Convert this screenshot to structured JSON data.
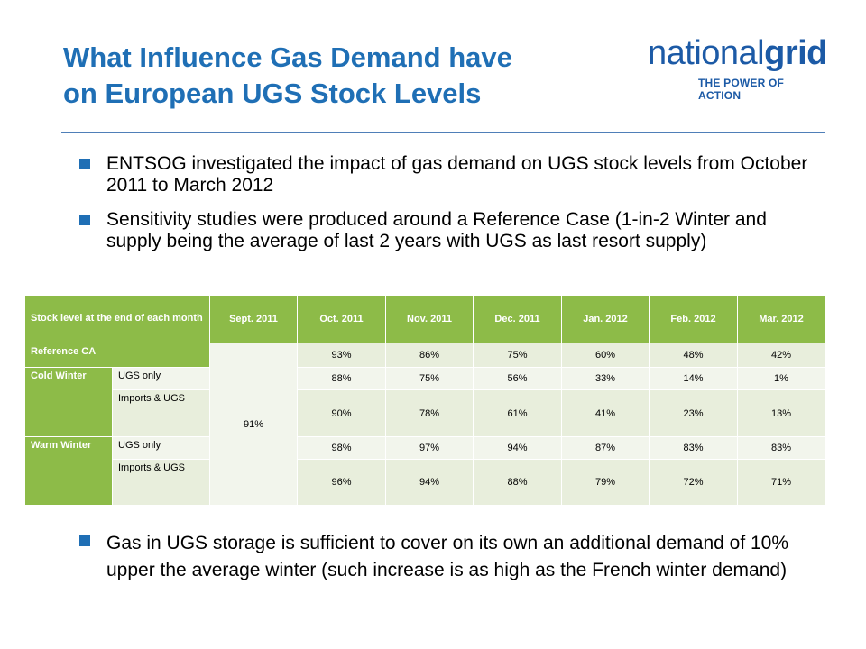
{
  "header": {
    "title_line1": "What Influence Gas Demand have",
    "title_line2": "on European UGS Stock Levels",
    "logo_word_light": "national",
    "logo_word_bold": "grid",
    "logo_tagline": "THE POWER OF ACTION"
  },
  "bullets_top": [
    "ENTSOG investigated the impact of gas demand on UGS stock levels from October 2011 to March 2012",
    "Sensitivity studies were produced around a Reference Case (1-in-2 Winter and supply being the average of last 2 years with UGS as last resort supply)"
  ],
  "bullets_bottom": [
    "Gas in UGS storage is sufficient to cover on its own an additional demand of 10% upper the average winter (such increase is as high as the French winter demand)"
  ],
  "table": {
    "corner": "Stock level at the end of each month",
    "columns": [
      "Sept. 2011",
      "Oct. 2011",
      "Nov. 2011",
      "Dec. 2011",
      "Jan. 2012",
      "Feb. 2012",
      "Mar. 2012"
    ],
    "sept_value": "91%",
    "reference": {
      "label": "Reference CA",
      "values": [
        "93%",
        "86%",
        "75%",
        "60%",
        "48%",
        "42%"
      ]
    },
    "cold": {
      "label": "Cold Winter",
      "rows": [
        {
          "sub": "UGS only",
          "values": [
            "88%",
            "75%",
            "56%",
            "33%",
            "14%",
            "1%"
          ]
        },
        {
          "sub": "Imports & UGS",
          "values": [
            "90%",
            "78%",
            "61%",
            "41%",
            "23%",
            "13%"
          ]
        }
      ]
    },
    "warm": {
      "label": "Warm Winter",
      "rows": [
        {
          "sub": "UGS only",
          "values": [
            "98%",
            "97%",
            "94%",
            "87%",
            "83%",
            "83%"
          ]
        },
        {
          "sub": "Imports & UGS",
          "values": [
            "96%",
            "94%",
            "88%",
            "79%",
            "72%",
            "71%"
          ]
        }
      ]
    }
  }
}
